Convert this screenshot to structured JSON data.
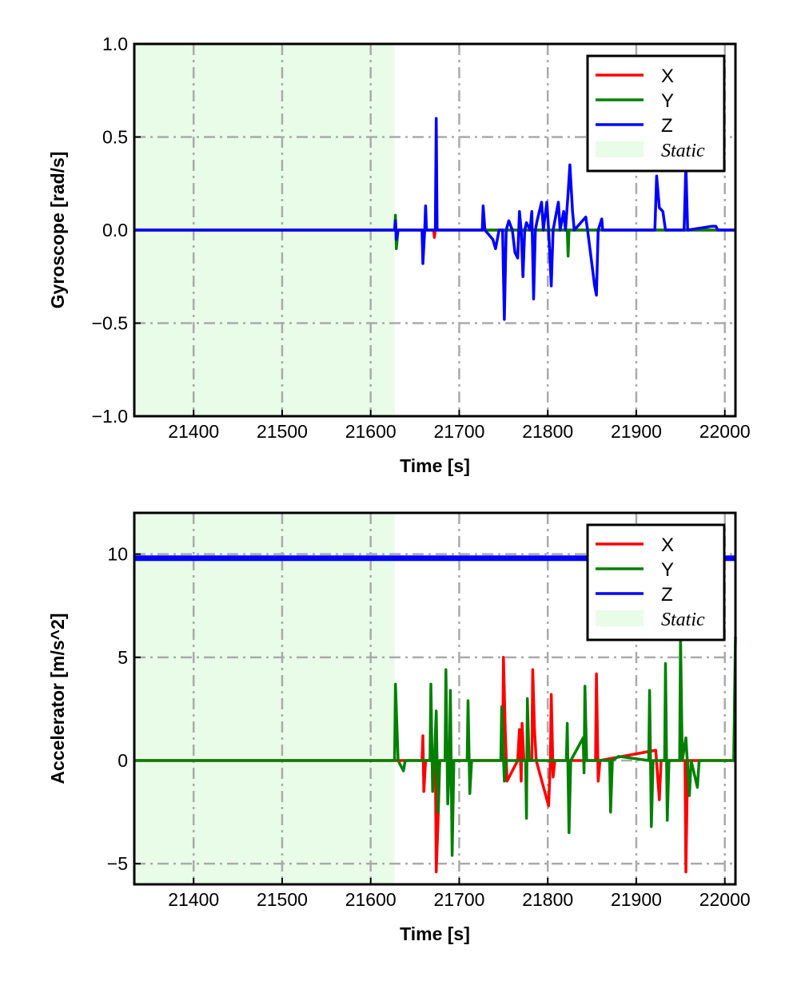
{
  "colors": {
    "X": "#ff0000",
    "Y": "#008000",
    "Z": "#0000ff",
    "static": "#e8fce8",
    "grid": "#aaaaaa"
  },
  "chart_data": [
    {
      "type": "line",
      "xlabel": "Time [s]",
      "ylabel": "Gyroscope [rad/s]",
      "xlim": [
        21333,
        22012
      ],
      "ylim": [
        -1,
        1
      ],
      "xticks": [
        21400,
        21500,
        21600,
        21700,
        21800,
        21900,
        22000
      ],
      "xtick_labels": [
        "21400",
        "21500",
        "21600",
        "21700",
        "21800",
        "21900",
        "22000"
      ],
      "yticks": [
        -1,
        -0.5,
        0,
        0.5,
        1
      ],
      "ytick_labels": [
        "−1.0",
        "−0.5",
        "0.0",
        "0.5",
        "1.0"
      ],
      "grid": true,
      "legend_position": "top-right",
      "static_span": [
        21333,
        21627
      ],
      "legend": [
        "X",
        "Y",
        "Z",
        "Static"
      ],
      "series": [
        {
          "name": "X",
          "points": [
            [
              21333,
              0
            ],
            [
              21627,
              0
            ],
            [
              21628,
              0.04
            ],
            [
              21629,
              -0.06
            ],
            [
              21631,
              0
            ],
            [
              21671,
              0
            ],
            [
              21672,
              -0.04
            ],
            [
              21673,
              0
            ],
            [
              22012,
              0
            ]
          ]
        },
        {
          "name": "Y",
          "points": [
            [
              21333,
              0
            ],
            [
              21627,
              0
            ],
            [
              21628,
              0.08
            ],
            [
              21629,
              -0.1
            ],
            [
              21631,
              0
            ],
            [
              21822,
              0
            ],
            [
              21823,
              -0.14
            ],
            [
              21824,
              0
            ],
            [
              22012,
              0
            ]
          ]
        },
        {
          "name": "Z",
          "points": [
            [
              21333,
              0
            ],
            [
              21627,
              0
            ],
            [
              21628,
              0.05
            ],
            [
              21629,
              -0.05
            ],
            [
              21631,
              0
            ],
            [
              21658,
              0
            ],
            [
              21659,
              -0.18
            ],
            [
              21661,
              0
            ],
            [
              21662,
              0.13
            ],
            [
              21663,
              0
            ],
            [
              21673,
              0
            ],
            [
              21674,
              0.6
            ],
            [
              21675,
              0
            ],
            [
              21726,
              0
            ],
            [
              21727,
              0.13
            ],
            [
              21729,
              0
            ],
            [
              21738,
              -0.05
            ],
            [
              21741,
              -0.1
            ],
            [
              21745,
              0
            ],
            [
              21749,
              0
            ],
            [
              21751,
              -0.48
            ],
            [
              21753,
              0
            ],
            [
              21756,
              0.05
            ],
            [
              21760,
              0
            ],
            [
              21763,
              -0.12
            ],
            [
              21766,
              -0.15
            ],
            [
              21768,
              0.1
            ],
            [
              21770,
              0
            ],
            [
              21772,
              -0.25
            ],
            [
              21774,
              0
            ],
            [
              21776,
              0.04
            ],
            [
              21780,
              0
            ],
            [
              21782,
              0.1
            ],
            [
              21784,
              -0.37
            ],
            [
              21786,
              0
            ],
            [
              21788,
              0.05
            ],
            [
              21793,
              0.15
            ],
            [
              21795,
              0
            ],
            [
              21796,
              0.04
            ],
            [
              21799,
              0.15
            ],
            [
              21801,
              0
            ],
            [
              21804,
              -0.3
            ],
            [
              21806,
              0
            ],
            [
              21812,
              0.15
            ],
            [
              21814,
              0
            ],
            [
              21818,
              0.1
            ],
            [
              21820,
              0
            ],
            [
              21823,
              0.2
            ],
            [
              21825,
              0.35
            ],
            [
              21828,
              0.1
            ],
            [
              21830,
              0
            ],
            [
              21843,
              0.07
            ],
            [
              21845,
              0
            ],
            [
              21853,
              -0.3
            ],
            [
              21855,
              -0.35
            ],
            [
              21857,
              0
            ],
            [
              21861,
              0.06
            ],
            [
              21862,
              0
            ],
            [
              21921,
              0
            ],
            [
              21923,
              0.29
            ],
            [
              21926,
              0.12
            ],
            [
              21930,
              0.1
            ],
            [
              21933,
              0
            ],
            [
              21954,
              0
            ],
            [
              21956,
              0.35
            ],
            [
              21958,
              0
            ],
            [
              21985,
              0.02
            ],
            [
              21990,
              0.02
            ],
            [
              21992,
              0
            ],
            [
              22012,
              0
            ]
          ]
        }
      ]
    },
    {
      "type": "line",
      "xlabel": "Time [s]",
      "ylabel": "Accelerator [m/s^2]",
      "xlim": [
        21333,
        22012
      ],
      "ylim": [
        -6,
        12
      ],
      "xticks": [
        21400,
        21500,
        21600,
        21700,
        21800,
        21900,
        22000
      ],
      "xtick_labels": [
        "21400",
        "21500",
        "21600",
        "21700",
        "21800",
        "21900",
        "22000"
      ],
      "yticks": [
        -5,
        0,
        5,
        10
      ],
      "ytick_labels": [
        "−5",
        "0",
        "5",
        "10"
      ],
      "grid": true,
      "legend_position": "top-right",
      "static_span": [
        21333,
        21627
      ],
      "legend": [
        "X",
        "Y",
        "Z",
        "Static"
      ],
      "series": [
        {
          "name": "Z",
          "points": [
            [
              21333,
              9.8
            ],
            [
              22012,
              9.8
            ]
          ]
        },
        {
          "name": "X",
          "points": [
            [
              21333,
              0
            ],
            [
              21658,
              0
            ],
            [
              21659,
              1.2
            ],
            [
              21660,
              -1.5
            ],
            [
              21662,
              0
            ],
            [
              21673,
              0
            ],
            [
              21674,
              -5.4
            ],
            [
              21676,
              -3
            ],
            [
              21678,
              0
            ],
            [
              21749,
              0
            ],
            [
              21750,
              5.0
            ],
            [
              21752,
              1.5
            ],
            [
              21754,
              -1
            ],
            [
              21766,
              0
            ],
            [
              21768,
              1.5
            ],
            [
              21770,
              -1
            ],
            [
              21771,
              1.8
            ],
            [
              21773,
              0
            ],
            [
              21782,
              0
            ],
            [
              21783,
              4.4
            ],
            [
              21785,
              1.5
            ],
            [
              21787,
              0
            ],
            [
              21801,
              -2.2
            ],
            [
              21803,
              0
            ],
            [
              21804,
              3.2
            ],
            [
              21806,
              -0.8
            ],
            [
              21808,
              0
            ],
            [
              21854,
              0
            ],
            [
              21855,
              4.2
            ],
            [
              21857,
              -1
            ],
            [
              21859,
              0
            ],
            [
              21922,
              0.5
            ],
            [
              21926,
              -1.9
            ],
            [
              21928,
              0
            ],
            [
              21955,
              0
            ],
            [
              21956,
              -5.4
            ],
            [
              21958,
              0
            ],
            [
              22012,
              0
            ]
          ]
        },
        {
          "name": "Y",
          "points": [
            [
              21333,
              0
            ],
            [
              21627,
              0
            ],
            [
              21628,
              3.7
            ],
            [
              21631,
              0
            ],
            [
              21637,
              -0.5
            ],
            [
              21639,
              0
            ],
            [
              21667,
              0
            ],
            [
              21668,
              3.7
            ],
            [
              21670,
              -1.5
            ],
            [
              21672,
              0
            ],
            [
              21674,
              2.4
            ],
            [
              21676,
              -2.5
            ],
            [
              21678,
              0
            ],
            [
              21684,
              0
            ],
            [
              21685,
              4.4
            ],
            [
              21687,
              -2.1
            ],
            [
              21689,
              0
            ],
            [
              21690,
              3.4
            ],
            [
              21692,
              -4.6
            ],
            [
              21694,
              0
            ],
            [
              21709,
              0
            ],
            [
              21710,
              2.9
            ],
            [
              21712,
              -1.6
            ],
            [
              21714,
              0
            ],
            [
              21747,
              0
            ],
            [
              21748,
              2.6
            ],
            [
              21751,
              -1
            ],
            [
              21753,
              0
            ],
            [
              21775,
              0
            ],
            [
              21776,
              -2.8
            ],
            [
              21777,
              3.0
            ],
            [
              21779,
              0
            ],
            [
              21821,
              0
            ],
            [
              21822,
              1.8
            ],
            [
              21824,
              -3.5
            ],
            [
              21826,
              0
            ],
            [
              21840,
              1.1
            ],
            [
              21841,
              -0.6
            ],
            [
              21842,
              3.6
            ],
            [
              21844,
              0
            ],
            [
              21870,
              0
            ],
            [
              21871,
              -2.5
            ],
            [
              21873,
              0
            ],
            [
              21880,
              0.2
            ],
            [
              21914,
              0
            ],
            [
              21915,
              3.4
            ],
            [
              21917,
              -3.2
            ],
            [
              21919,
              0
            ],
            [
              21932,
              0
            ],
            [
              21933,
              4.7
            ],
            [
              21935,
              -2.9
            ],
            [
              21937,
              0
            ],
            [
              21949,
              0
            ],
            [
              21950,
              6.0
            ],
            [
              21952,
              0
            ],
            [
              21956,
              1.1
            ],
            [
              21960,
              -1.7
            ],
            [
              21962,
              0
            ],
            [
              21969,
              -1.3
            ],
            [
              21971,
              0
            ],
            [
              22010,
              0
            ],
            [
              22012,
              6
            ]
          ]
        }
      ]
    }
  ]
}
